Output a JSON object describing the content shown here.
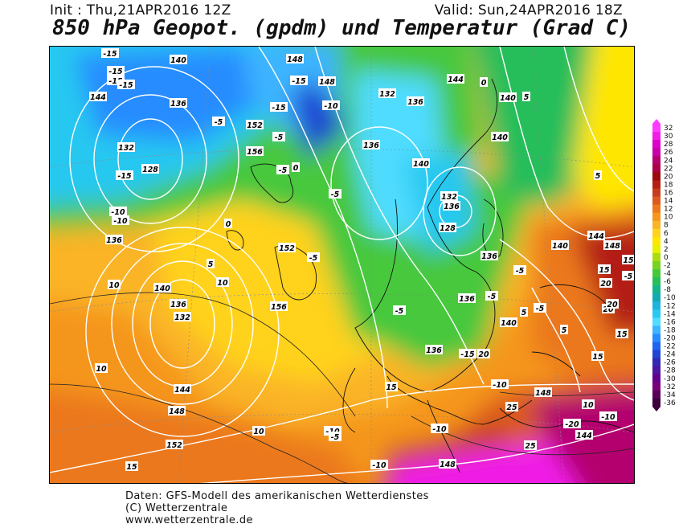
{
  "header": {
    "init": "Init : Thu,21APR2016 12Z",
    "valid": "Valid: Sun,24APR2016 18Z",
    "title": "850 hPa Geopot. (gpdm) und Temperatur (Grad C)"
  },
  "colorbar": {
    "levels": [
      "32",
      "30",
      "28",
      "26",
      "24",
      "22",
      "20",
      "18",
      "16",
      "14",
      "12",
      "10",
      "8",
      "6",
      "4",
      "2",
      "0",
      "-2",
      "-4",
      "-6",
      "-8",
      "-10",
      "-12",
      "-14",
      "-16",
      "-18",
      "-20",
      "-22",
      "-24",
      "-26",
      "-28",
      "-30",
      "-32",
      "-34",
      "-36"
    ],
    "colors": [
      "#ff3cff",
      "#f01ee6",
      "#dc00c8",
      "#c800aa",
      "#b4006e",
      "#aa0046",
      "#9a0a0a",
      "#b41e14",
      "#c83c1e",
      "#dc5a1e",
      "#eb781e",
      "#f5961e",
      "#fab428",
      "#ffd21e",
      "#ffe600",
      "#e6f000",
      "#aadc14",
      "#78d21e",
      "#46c83c",
      "#28be5a",
      "#14b48c",
      "#14aab4",
      "#1eb4dc",
      "#28c8f0",
      "#50dcff",
      "#3cb4ff",
      "#288cff",
      "#1e64f0",
      "#1e46d2",
      "#3228b4",
      "#5014a0",
      "#64008c",
      "#780078",
      "#5a005a",
      "#3c003c"
    ]
  },
  "map": {
    "geopotential_labels": [
      "140",
      "144",
      "148",
      "132",
      "136",
      "152",
      "156",
      "128",
      "148",
      "144",
      "136",
      "132",
      "140",
      "136",
      "140",
      "128",
      "132",
      "136",
      "140",
      "156",
      "152",
      "136",
      "140",
      "136",
      "132",
      "144",
      "148",
      "140",
      "136",
      "144",
      "148",
      "140",
      "148",
      "144",
      "152",
      "148",
      "136",
      "136"
    ],
    "temperature_labels": [
      "-15",
      "-15",
      "-15",
      "-15",
      "-15",
      "-10",
      "-10",
      "-5",
      "-15",
      "-15",
      "-10",
      "-5",
      "-5",
      "-5",
      "-5",
      "-5",
      "0",
      "0",
      "0",
      "5",
      "5",
      "5",
      "10",
      "10",
      "10",
      "10",
      "15",
      "15",
      "15",
      "20",
      "20",
      "25",
      "25",
      "-20",
      "-10",
      "-10",
      "-10",
      "-15",
      "-10",
      "-10",
      "-5",
      "-5",
      "-5",
      "5",
      "5",
      "10",
      "15",
      "15",
      "15",
      "15",
      "20",
      "20",
      "25",
      "-5",
      "-5"
    ]
  },
  "footer": {
    "line1": "Daten: GFS-Modell des amerikanischen Wetterdienstes",
    "line2": "(C) Wetterzentrale",
    "line3": "www.wetterzentrale.de"
  }
}
